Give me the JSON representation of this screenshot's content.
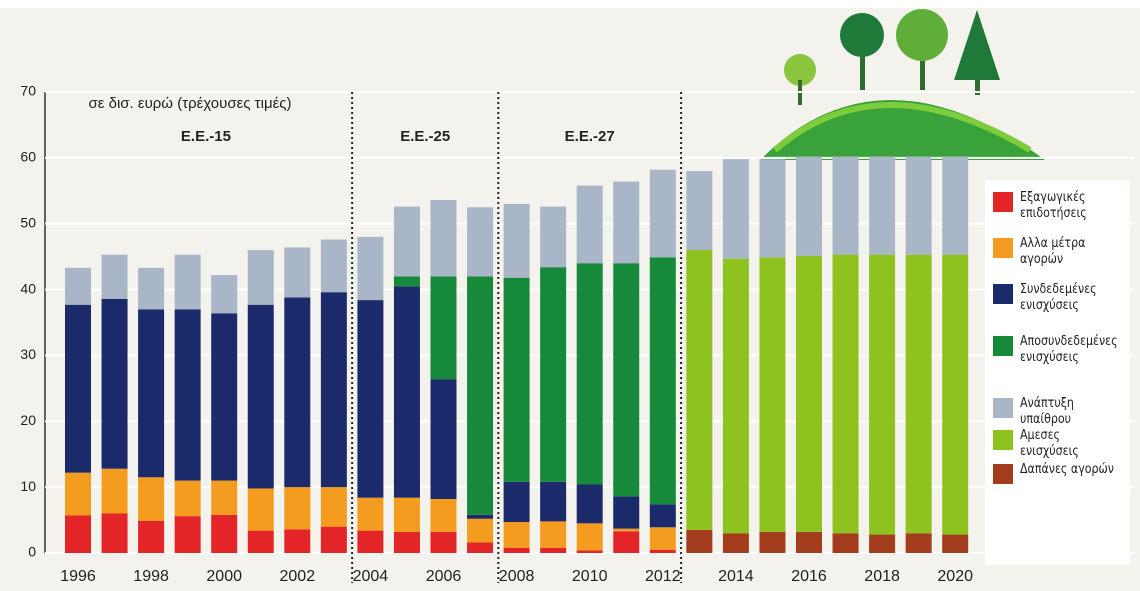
{
  "chart_data": {
    "type": "stacked-bar",
    "subtitle": "σε δισ. ευρώ (τρέχουσες τιμές)",
    "periods": [
      "Ε.Ε.-15",
      "Ε.Ε.-25",
      "Ε.Ε.-27"
    ],
    "categories": [
      "1996",
      null,
      "1998",
      null,
      "2000",
      null,
      "2002",
      null,
      "2004",
      null,
      "2006",
      null,
      "2008",
      null,
      "2010",
      null,
      "2012",
      null,
      "2014",
      null,
      "2016",
      null,
      "2018",
      null,
      "2020"
    ],
    "ylim": [
      0,
      70
    ],
    "yticks": [
      0,
      10,
      20,
      30,
      40,
      50,
      60,
      70
    ],
    "grid": true,
    "series": [
      {
        "name": "Εξαγωγικές επιδοτήσεις",
        "color": "#e42527",
        "values": [
          5.7,
          6.0,
          4.9,
          5.6,
          5.8,
          3.4,
          3.6,
          4.0,
          3.4,
          3.2,
          3.2,
          1.6,
          0.8,
          0.8,
          0.4,
          3.3,
          0.5,
          null,
          null,
          null,
          null,
          null,
          null,
          null,
          null
        ]
      },
      {
        "name": "Αλλα μέτρα αγορών",
        "color": "#f39c1f",
        "values": [
          6.5,
          6.8,
          6.6,
          5.4,
          5.2,
          6.4,
          6.4,
          6.0,
          5.0,
          5.2,
          5.0,
          3.6,
          3.9,
          4.0,
          4.1,
          0.4,
          3.4,
          null,
          null,
          null,
          null,
          null,
          null,
          null,
          null
        ]
      },
      {
        "name": "Συνδεδεμένες ενισχύσεις",
        "color": "#1b2a6b",
        "values": [
          25.5,
          25.8,
          25.5,
          26.0,
          25.4,
          27.9,
          28.8,
          29.6,
          30.0,
          32.1,
          18.2,
          0.6,
          6.1,
          6.0,
          5.9,
          4.9,
          3.5,
          null,
          null,
          null,
          null,
          null,
          null,
          null,
          null
        ]
      },
      {
        "name": "Αποσυνδεδεμένες ενισχύσεις",
        "color": "#168a3a",
        "values": [
          null,
          null,
          null,
          null,
          null,
          null,
          null,
          null,
          null,
          1.5,
          15.6,
          36.2,
          31.0,
          32.6,
          33.6,
          35.4,
          37.5,
          null,
          null,
          null,
          null,
          null,
          null,
          null,
          null
        ]
      },
      {
        "name": "Ανάπτυξη υπαίθρου",
        "color": "#a9b6c8",
        "values": [
          5.6,
          6.7,
          6.3,
          8.3,
          5.8,
          8.3,
          7.6,
          8.0,
          9.6,
          10.6,
          11.6,
          10.5,
          11.2,
          9.2,
          11.8,
          12.4,
          13.3,
          12.0,
          15.1,
          14.9,
          15.1,
          14.9,
          14.9,
          14.9,
          14.9
        ]
      },
      {
        "name": "Αμεσες ενισχύσεις",
        "color": "#8dc21f",
        "values": [
          null,
          null,
          null,
          null,
          null,
          null,
          null,
          null,
          null,
          null,
          null,
          null,
          null,
          null,
          null,
          null,
          null,
          42.5,
          41.7,
          41.7,
          41.9,
          42.3,
          42.5,
          42.3,
          42.5
        ]
      },
      {
        "name": "Δαπάνες αγορών",
        "color": "#a33c1c",
        "values": [
          null,
          null,
          null,
          null,
          null,
          null,
          null,
          null,
          null,
          null,
          null,
          null,
          null,
          null,
          null,
          null,
          null,
          3.5,
          3.0,
          3.2,
          3.2,
          3.0,
          2.8,
          3.0,
          2.8
        ]
      }
    ]
  }
}
